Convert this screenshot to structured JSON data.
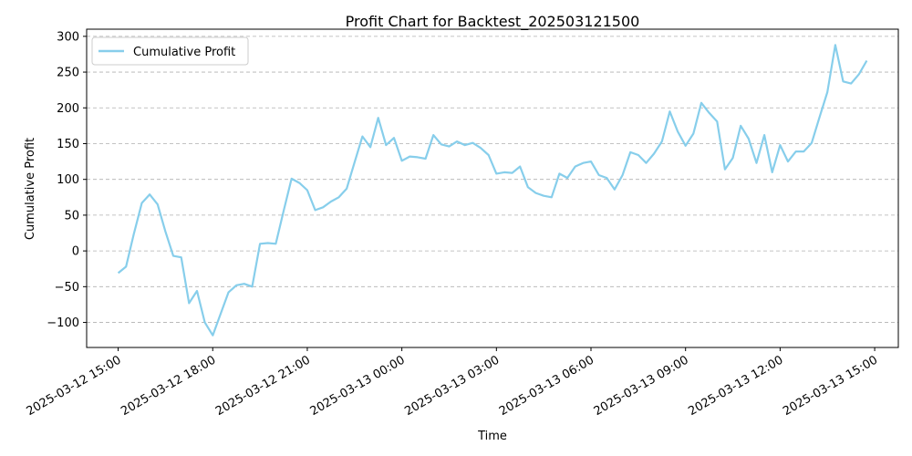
{
  "chart_data": {
    "type": "line",
    "title": "Profit Chart for Backtest_202503121500",
    "xlabel": "Time",
    "ylabel": "Cumulative Profit",
    "x_start": "2025-03-12 15:00",
    "x_step_minutes": 15,
    "xlim": [
      "2025-03-12 14:00",
      "2025-03-13 15:45"
    ],
    "ylim": [
      -135,
      310
    ],
    "xticks": [
      "2025-03-12 15:00",
      "2025-03-12 18:00",
      "2025-03-12 21:00",
      "2025-03-13 00:00",
      "2025-03-13 03:00",
      "2025-03-13 06:00",
      "2025-03-13 09:00",
      "2025-03-13 12:00",
      "2025-03-13 15:00"
    ],
    "yticks": [
      -100,
      -50,
      0,
      50,
      100,
      150,
      200,
      250,
      300
    ],
    "grid": "y-dashed",
    "legend_position": "top-left",
    "series": [
      {
        "name": "Cumulative Profit",
        "color": "#87ceeb",
        "values": [
          -31,
          -22,
          24,
          67,
          79,
          65,
          27,
          -7,
          -9,
          -73,
          -56,
          -100,
          -118,
          -88,
          -58,
          -48,
          -46,
          -50,
          10,
          11,
          10,
          56,
          101,
          95,
          85,
          57,
          61,
          69,
          75,
          87,
          124,
          160,
          145,
          186,
          148,
          158,
          126,
          132,
          131,
          129,
          162,
          149,
          146,
          153,
          148,
          151,
          144,
          134,
          108,
          110,
          109,
          118,
          89,
          81,
          77,
          75,
          108,
          102,
          118,
          123,
          125,
          106,
          102,
          86,
          106,
          138,
          134,
          123,
          136,
          153,
          195,
          167,
          147,
          164,
          207,
          193,
          181,
          114,
          130,
          175,
          157,
          123,
          162,
          110,
          148,
          125,
          139,
          139,
          151,
          187,
          222,
          288,
          237,
          234,
          247,
          266
        ]
      }
    ]
  }
}
